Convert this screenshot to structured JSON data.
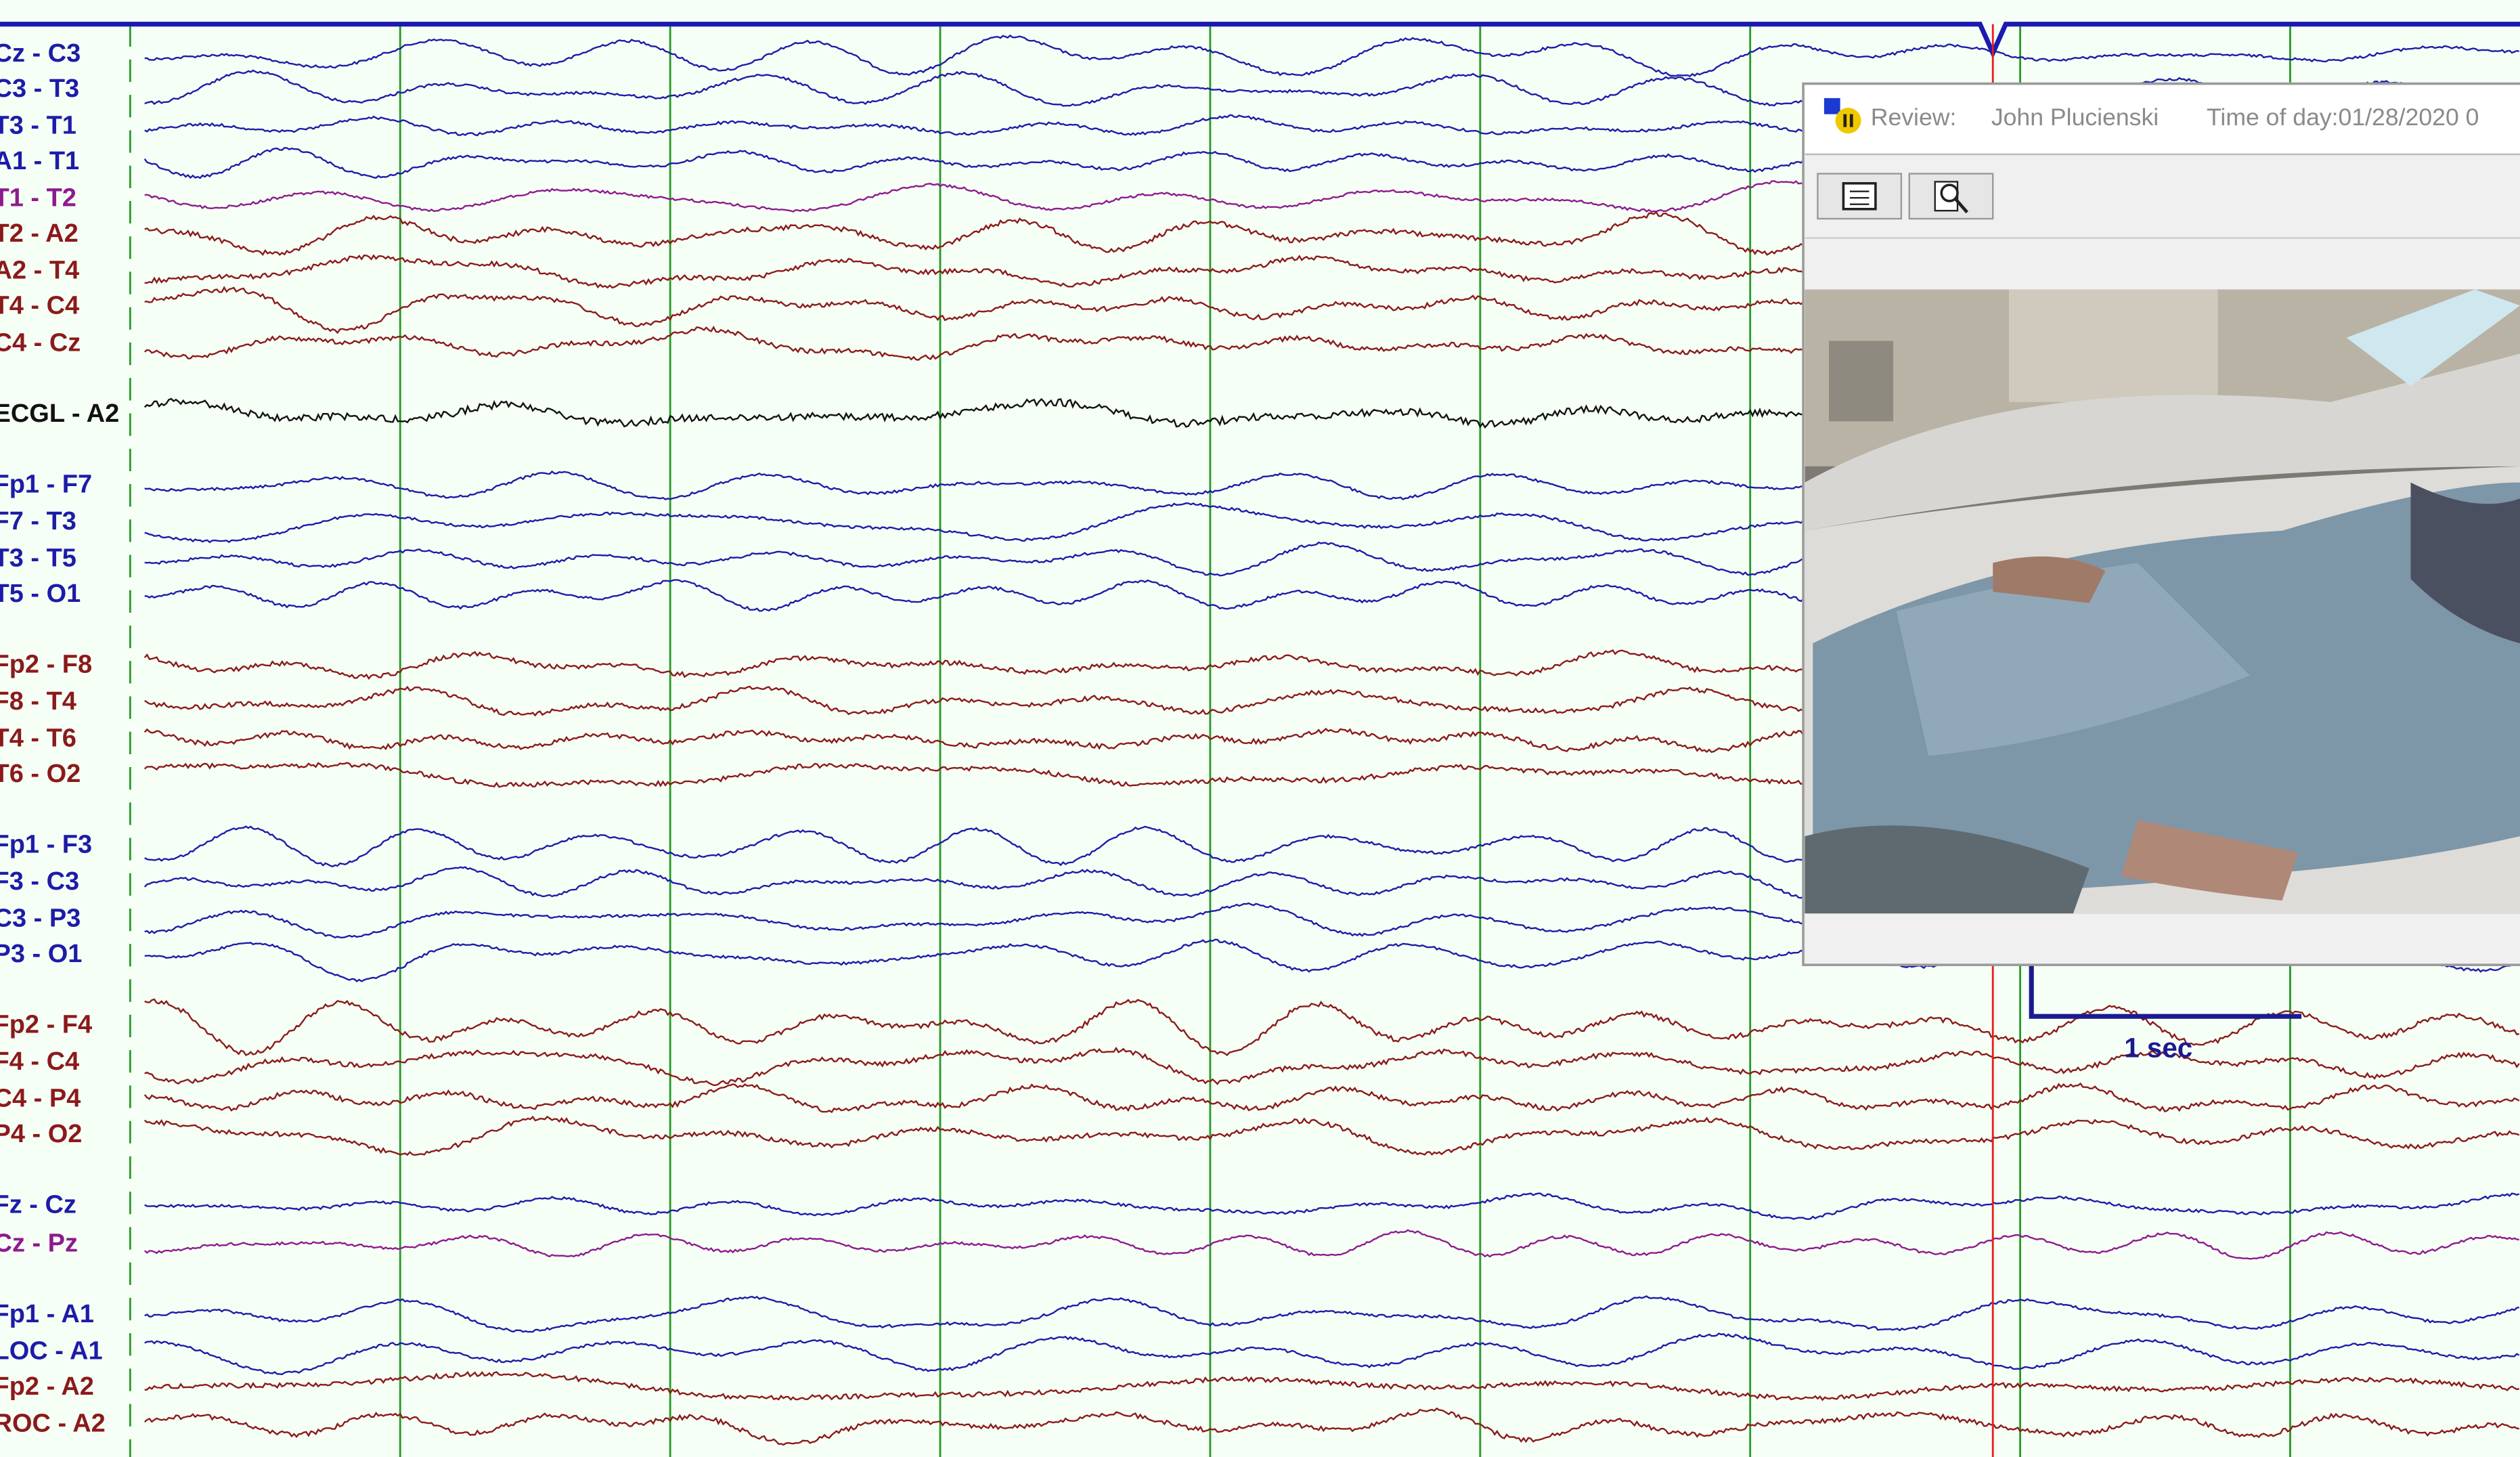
{
  "channels": [
    {
      "label": "Cz - C3",
      "color": "#1c1ca8"
    },
    {
      "label": "C3 - T3",
      "color": "#1c1ca8"
    },
    {
      "label": "T3 - T1",
      "color": "#1c1ca8"
    },
    {
      "label": "A1 - T1",
      "color": "#1c1ca8"
    },
    {
      "label": "T1 - T2",
      "color": "#8e1a8e"
    },
    {
      "label": "T2 - A2",
      "color": "#8b1a1a"
    },
    {
      "label": "A2 - T4",
      "color": "#8b1a1a"
    },
    {
      "label": "T4 - C4",
      "color": "#8b1a1a"
    },
    {
      "label": "C4 - Cz",
      "color": "#8b1a1a"
    },
    {
      "label": "ECGL - A2",
      "color": "#111111"
    },
    {
      "label": "Fp1 - F7",
      "color": "#1c1ca8"
    },
    {
      "label": "F7 - T3",
      "color": "#1c1ca8"
    },
    {
      "label": "T3 - T5",
      "color": "#1c1ca8"
    },
    {
      "label": "T5 - O1",
      "color": "#1c1ca8"
    },
    {
      "label": "Fp2 - F8",
      "color": "#8b1a1a"
    },
    {
      "label": "F8 - T4",
      "color": "#8b1a1a"
    },
    {
      "label": "T4 - T6",
      "color": "#8b1a1a"
    },
    {
      "label": "T6 - O2",
      "color": "#8b1a1a"
    },
    {
      "label": "Fp1 - F3",
      "color": "#1c1ca8"
    },
    {
      "label": "F3 - C3",
      "color": "#1c1ca8"
    },
    {
      "label": "C3 - P3",
      "color": "#1c1ca8"
    },
    {
      "label": "P3 - O1",
      "color": "#1c1ca8"
    },
    {
      "label": "Fp2 - F4",
      "color": "#8b1a1a"
    },
    {
      "label": "F4 - C4",
      "color": "#8b1a1a"
    },
    {
      "label": "C4 - P4",
      "color": "#8b1a1a"
    },
    {
      "label": "P4 - O2",
      "color": "#8b1a1a"
    },
    {
      "label": "Fz - Cz",
      "color": "#1c1ca8"
    },
    {
      "label": "Cz - Pz",
      "color": "#8e1a8e"
    },
    {
      "label": "Fp1 - A1",
      "color": "#1c1ca8"
    },
    {
      "label": "LOC - A1",
      "color": "#1c1ca8"
    },
    {
      "label": "Fp2 - A2",
      "color": "#8b1a1a"
    },
    {
      "label": "ROC - A2",
      "color": "#8b1a1a"
    }
  ],
  "calibration": {
    "label": "1 sec"
  },
  "review_window": {
    "mode": "Review:",
    "patient": "John Plucienski",
    "time": "Time of day:01/28/2020 0"
  }
}
